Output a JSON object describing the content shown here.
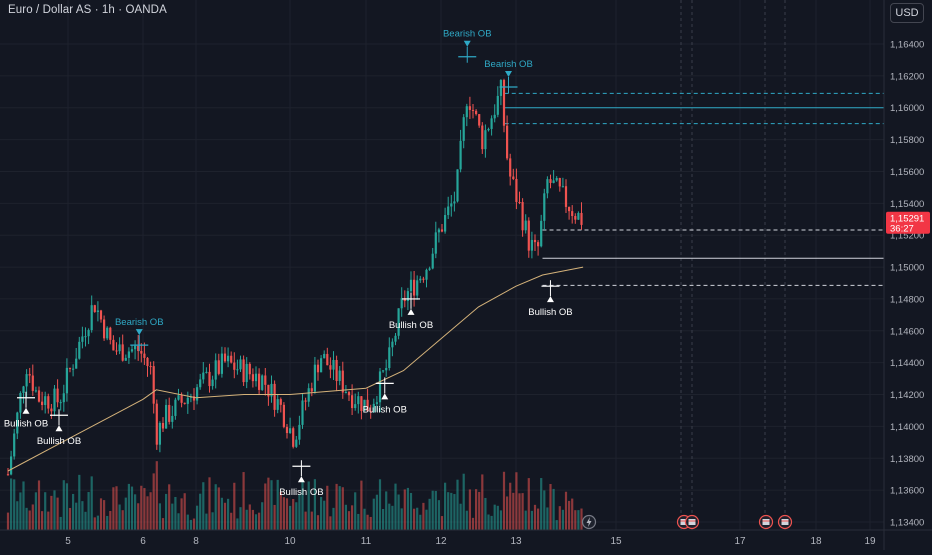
{
  "header": {
    "title": "Euro / Dollar AS · 1h · OANDA",
    "currency_button": "USD"
  },
  "price_tag": {
    "price": "1,15291",
    "countdown": "36:27",
    "color": "#f23645"
  },
  "colors": {
    "background": "#131722",
    "grid": "#1e222d",
    "up": "#26a69a",
    "down": "#ef5350",
    "ma": "#d4b27a",
    "bearish_label": "#2fa9c6",
    "bearish_line": "#2fa9c6"
  },
  "chart_data": {
    "type": "candlestick",
    "symbol": "Euro / Dollar AS",
    "timeframe": "1h",
    "source": "OANDA",
    "currency": "USD",
    "last_price": 1.15291,
    "countdown": "36:27",
    "y_axis": {
      "ticks": [
        "1,16400",
        "1,16200",
        "1,16000",
        "1,15800",
        "1,15600",
        "1,15400",
        "1,15200",
        "1,15000",
        "1,14800",
        "1,14600",
        "1,14400",
        "1,14200",
        "1,14000",
        "1,13800",
        "1,13600",
        "1,13400"
      ],
      "range": [
        1.1333,
        1.1656
      ]
    },
    "x_axis": {
      "ticks": [
        "5",
        "6",
        "8",
        "10",
        "11",
        "12",
        "13",
        "15",
        "17",
        "18",
        "19"
      ],
      "tick_days": [
        5,
        6,
        8,
        10,
        11,
        12,
        13,
        15,
        17,
        18,
        19
      ]
    },
    "day_index": [
      4,
      5,
      6,
      8,
      9,
      10,
      11,
      12,
      13,
      14,
      15,
      16,
      17,
      18,
      19
    ],
    "key_candles": [
      {
        "day": 4.0,
        "price": 1.137
      },
      {
        "day": 4.3,
        "price": 1.144
      },
      {
        "day": 4.5,
        "price": 1.1418
      },
      {
        "day": 4.85,
        "price": 1.1416
      },
      {
        "day": 5.35,
        "price": 1.1478
      },
      {
        "day": 5.6,
        "price": 1.1448
      },
      {
        "day": 5.95,
        "price": 1.1448
      },
      {
        "day": 6.3,
        "price": 1.1435
      },
      {
        "day": 6.5,
        "price": 1.1395
      },
      {
        "day": 6.8,
        "price": 1.1405
      },
      {
        "day": 8.6,
        "price": 1.144
      },
      {
        "day": 9.4,
        "price": 1.143
      },
      {
        "day": 9.8,
        "price": 1.1412
      },
      {
        "day": 10.05,
        "price": 1.1393
      },
      {
        "day": 10.4,
        "price": 1.1445
      },
      {
        "day": 10.8,
        "price": 1.142
      },
      {
        "day": 11.05,
        "price": 1.1412
      },
      {
        "day": 11.3,
        "price": 1.144
      },
      {
        "day": 11.5,
        "price": 1.148
      },
      {
        "day": 11.8,
        "price": 1.15
      },
      {
        "day": 12.0,
        "price": 1.1525
      },
      {
        "day": 12.2,
        "price": 1.1545
      },
      {
        "day": 12.35,
        "price": 1.161
      },
      {
        "day": 12.55,
        "price": 1.158
      },
      {
        "day": 12.8,
        "price": 1.161
      },
      {
        "day": 12.9,
        "price": 1.156
      },
      {
        "day": 13.05,
        "price": 1.154
      },
      {
        "day": 13.25,
        "price": 1.1515
      },
      {
        "day": 13.4,
        "price": 1.1508
      },
      {
        "day": 13.6,
        "price": 1.1555
      },
      {
        "day": 13.85,
        "price": 1.1545
      },
      {
        "day": 14.1,
        "price": 1.1535
      },
      {
        "day": 14.3,
        "price": 1.15291
      }
    ],
    "moving_average": [
      {
        "day": 4.0,
        "price": 1.1372
      },
      {
        "day": 5.0,
        "price": 1.1392
      },
      {
        "day": 6.0,
        "price": 1.1417
      },
      {
        "day": 6.5,
        "price": 1.1423
      },
      {
        "day": 8.0,
        "price": 1.1418
      },
      {
        "day": 9.0,
        "price": 1.142
      },
      {
        "day": 10.0,
        "price": 1.142
      },
      {
        "day": 11.0,
        "price": 1.1424
      },
      {
        "day": 11.5,
        "price": 1.1435
      },
      {
        "day": 12.0,
        "price": 1.1455
      },
      {
        "day": 12.5,
        "price": 1.1475
      },
      {
        "day": 13.0,
        "price": 1.1488
      },
      {
        "day": 13.5,
        "price": 1.1495
      },
      {
        "day": 14.3,
        "price": 1.15
      }
    ],
    "annotations": [
      {
        "text": "Bullish OB",
        "kind": "bullish",
        "day": 4.3,
        "price": 1.1418
      },
      {
        "text": "Bullish OB",
        "kind": "bullish",
        "day": 4.85,
        "price": 1.1407
      },
      {
        "text": "Bearish OB",
        "kind": "bearish",
        "day": 5.95,
        "price": 1.1451
      },
      {
        "text": "Bullish OB",
        "kind": "bullish",
        "day": 10.15,
        "price": 1.1375
      },
      {
        "text": "Bullish OB",
        "kind": "bullish",
        "day": 11.25,
        "price": 1.1427
      },
      {
        "text": "Bullish OB",
        "kind": "bullish",
        "day": 11.6,
        "price": 1.148
      },
      {
        "text": "Bearish OB",
        "kind": "bearish",
        "day": 12.35,
        "price": 1.1632
      },
      {
        "text": "Bearish OB",
        "kind": "bearish",
        "day": 12.9,
        "price": 1.1613
      },
      {
        "text": "Bullish OB",
        "kind": "bullish",
        "day": 13.65,
        "price": 1.1488
      }
    ],
    "levels": [
      {
        "price": 1.1609,
        "style": "dashed",
        "color": "#2fa9c6"
      },
      {
        "price": 1.16,
        "style": "solid",
        "color": "#2fa9c6"
      },
      {
        "price": 1.159,
        "style": "dashed",
        "color": "#2fa9c6"
      },
      {
        "price": 1.15233,
        "style": "dashed",
        "color": "#d1d4dc"
      },
      {
        "price": 1.15055,
        "style": "solid",
        "color": "#d1d4dc"
      },
      {
        "price": 1.14885,
        "style": "dashed",
        "color": "#d1d4dc"
      }
    ],
    "event_markers": [
      "lightning",
      "flag",
      "flag",
      "flag",
      "flag"
    ],
    "grid": true
  }
}
